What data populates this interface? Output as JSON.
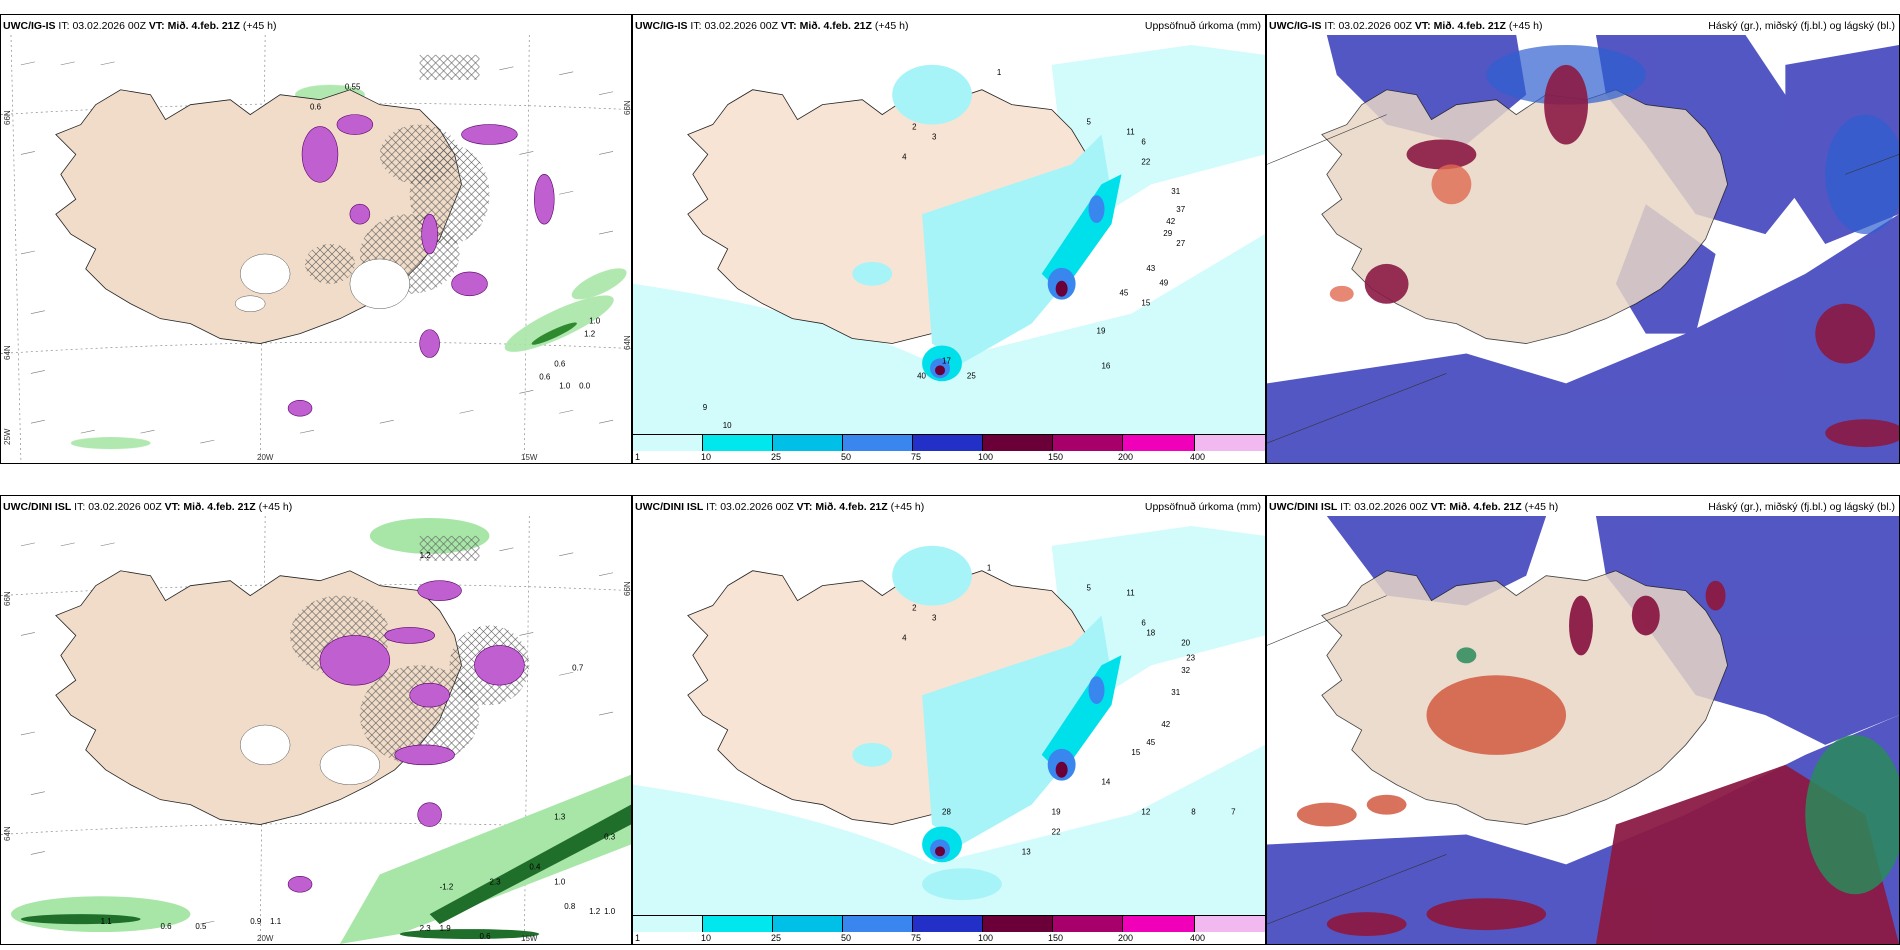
{
  "panels": {
    "p1": {
      "model": "UWC/IG-IS",
      "it_label": "IT:",
      "it": "03.02.2026 00Z",
      "vt_label": "VT:",
      "vt": "Mið. 4.feb. 21Z",
      "lead": "(+45 h)",
      "right": ""
    },
    "p2": {
      "model": "UWC/IG-IS",
      "it_label": "IT:",
      "it": "03.02.2026 00Z",
      "vt_label": "VT:",
      "vt": "Mið. 4.feb. 21Z",
      "lead": "(+45 h)",
      "right": "Uppsöfnuð úrkoma (mm)"
    },
    "p3": {
      "model": "UWC/IG-IS",
      "it_label": "IT:",
      "it": "03.02.2026 00Z",
      "vt_label": "VT:",
      "vt": "Mið. 4.feb. 21Z",
      "lead": "(+45 h)",
      "right": "Háský (gr.), miðský (fj.bl.) og lágský (bl.)"
    },
    "p4": {
      "model": "UWC/DINI ISL",
      "it_label": "IT:",
      "it": "03.02.2026 00Z",
      "vt_label": "VT:",
      "vt": "Mið. 4.feb. 21Z",
      "lead": "(+45 h)",
      "right": ""
    },
    "p5": {
      "model": "UWC/DINI ISL",
      "it_label": "IT:",
      "it": "03.02.2026 00Z",
      "vt_label": "VT:",
      "vt": "Mið. 4.feb. 21Z",
      "lead": "(+45 h)",
      "right": "Uppsöfnuð úrkoma (mm)"
    },
    "p6": {
      "model": "UWC/DINI ISL",
      "it_label": "IT:",
      "it": "03.02.2026 00Z",
      "vt_label": "VT:",
      "vt": "Mið. 4.feb. 21Z",
      "lead": "(+45 h)",
      "right": "Háský (gr.), miðský (fj.bl.) og lágský (bl.)"
    }
  },
  "axes": {
    "lat66": "66N",
    "lat64": "64N",
    "lat_lo": "25W",
    "lon20": "20W",
    "lon15": "15W",
    "lat66r": "66N",
    "lat64r": "64N"
  },
  "colorbar": {
    "ticks": [
      "1",
      "10",
      "25",
      "50",
      "75",
      "100",
      "150",
      "200",
      "400"
    ],
    "colors": [
      "#d2fbfb",
      "#00e8ee",
      "#00c0e8",
      "#3a86ef",
      "#2230c8",
      "#6b0038",
      "#a8006a",
      "#f000b8",
      "#f2b8f0"
    ]
  },
  "precip_labels_top": [
    "1",
    "2",
    "3",
    "4",
    "5",
    "6",
    "11",
    "22",
    "31",
    "37",
    "42",
    "29",
    "27",
    "43",
    "49",
    "45",
    "15",
    "19",
    "16",
    "17",
    "40",
    "25",
    "9",
    "10"
  ],
  "precip_labels_bot": [
    "1",
    "2",
    "3",
    "4",
    "5",
    "6",
    "11",
    "18",
    "20",
    "23",
    "32",
    "31",
    "42",
    "45",
    "15",
    "14",
    "22",
    "13",
    "28",
    "19",
    "12",
    "8",
    "7"
  ],
  "sig_labels_top": [
    "0.6",
    "0.55",
    "1.0",
    "1.2",
    "0.6",
    "0.6",
    "1.0",
    "0.0"
  ],
  "sig_labels_bot": [
    "1.2",
    "0.7",
    "1.3",
    "0.3",
    "0.4",
    "1.0",
    "0.8",
    "1.2",
    "1.0",
    "1.1",
    "0.6",
    "0.5",
    "0.9",
    "1.1",
    "1.9",
    "2.3",
    "0.6",
    "-1.2",
    "2.3"
  ]
}
